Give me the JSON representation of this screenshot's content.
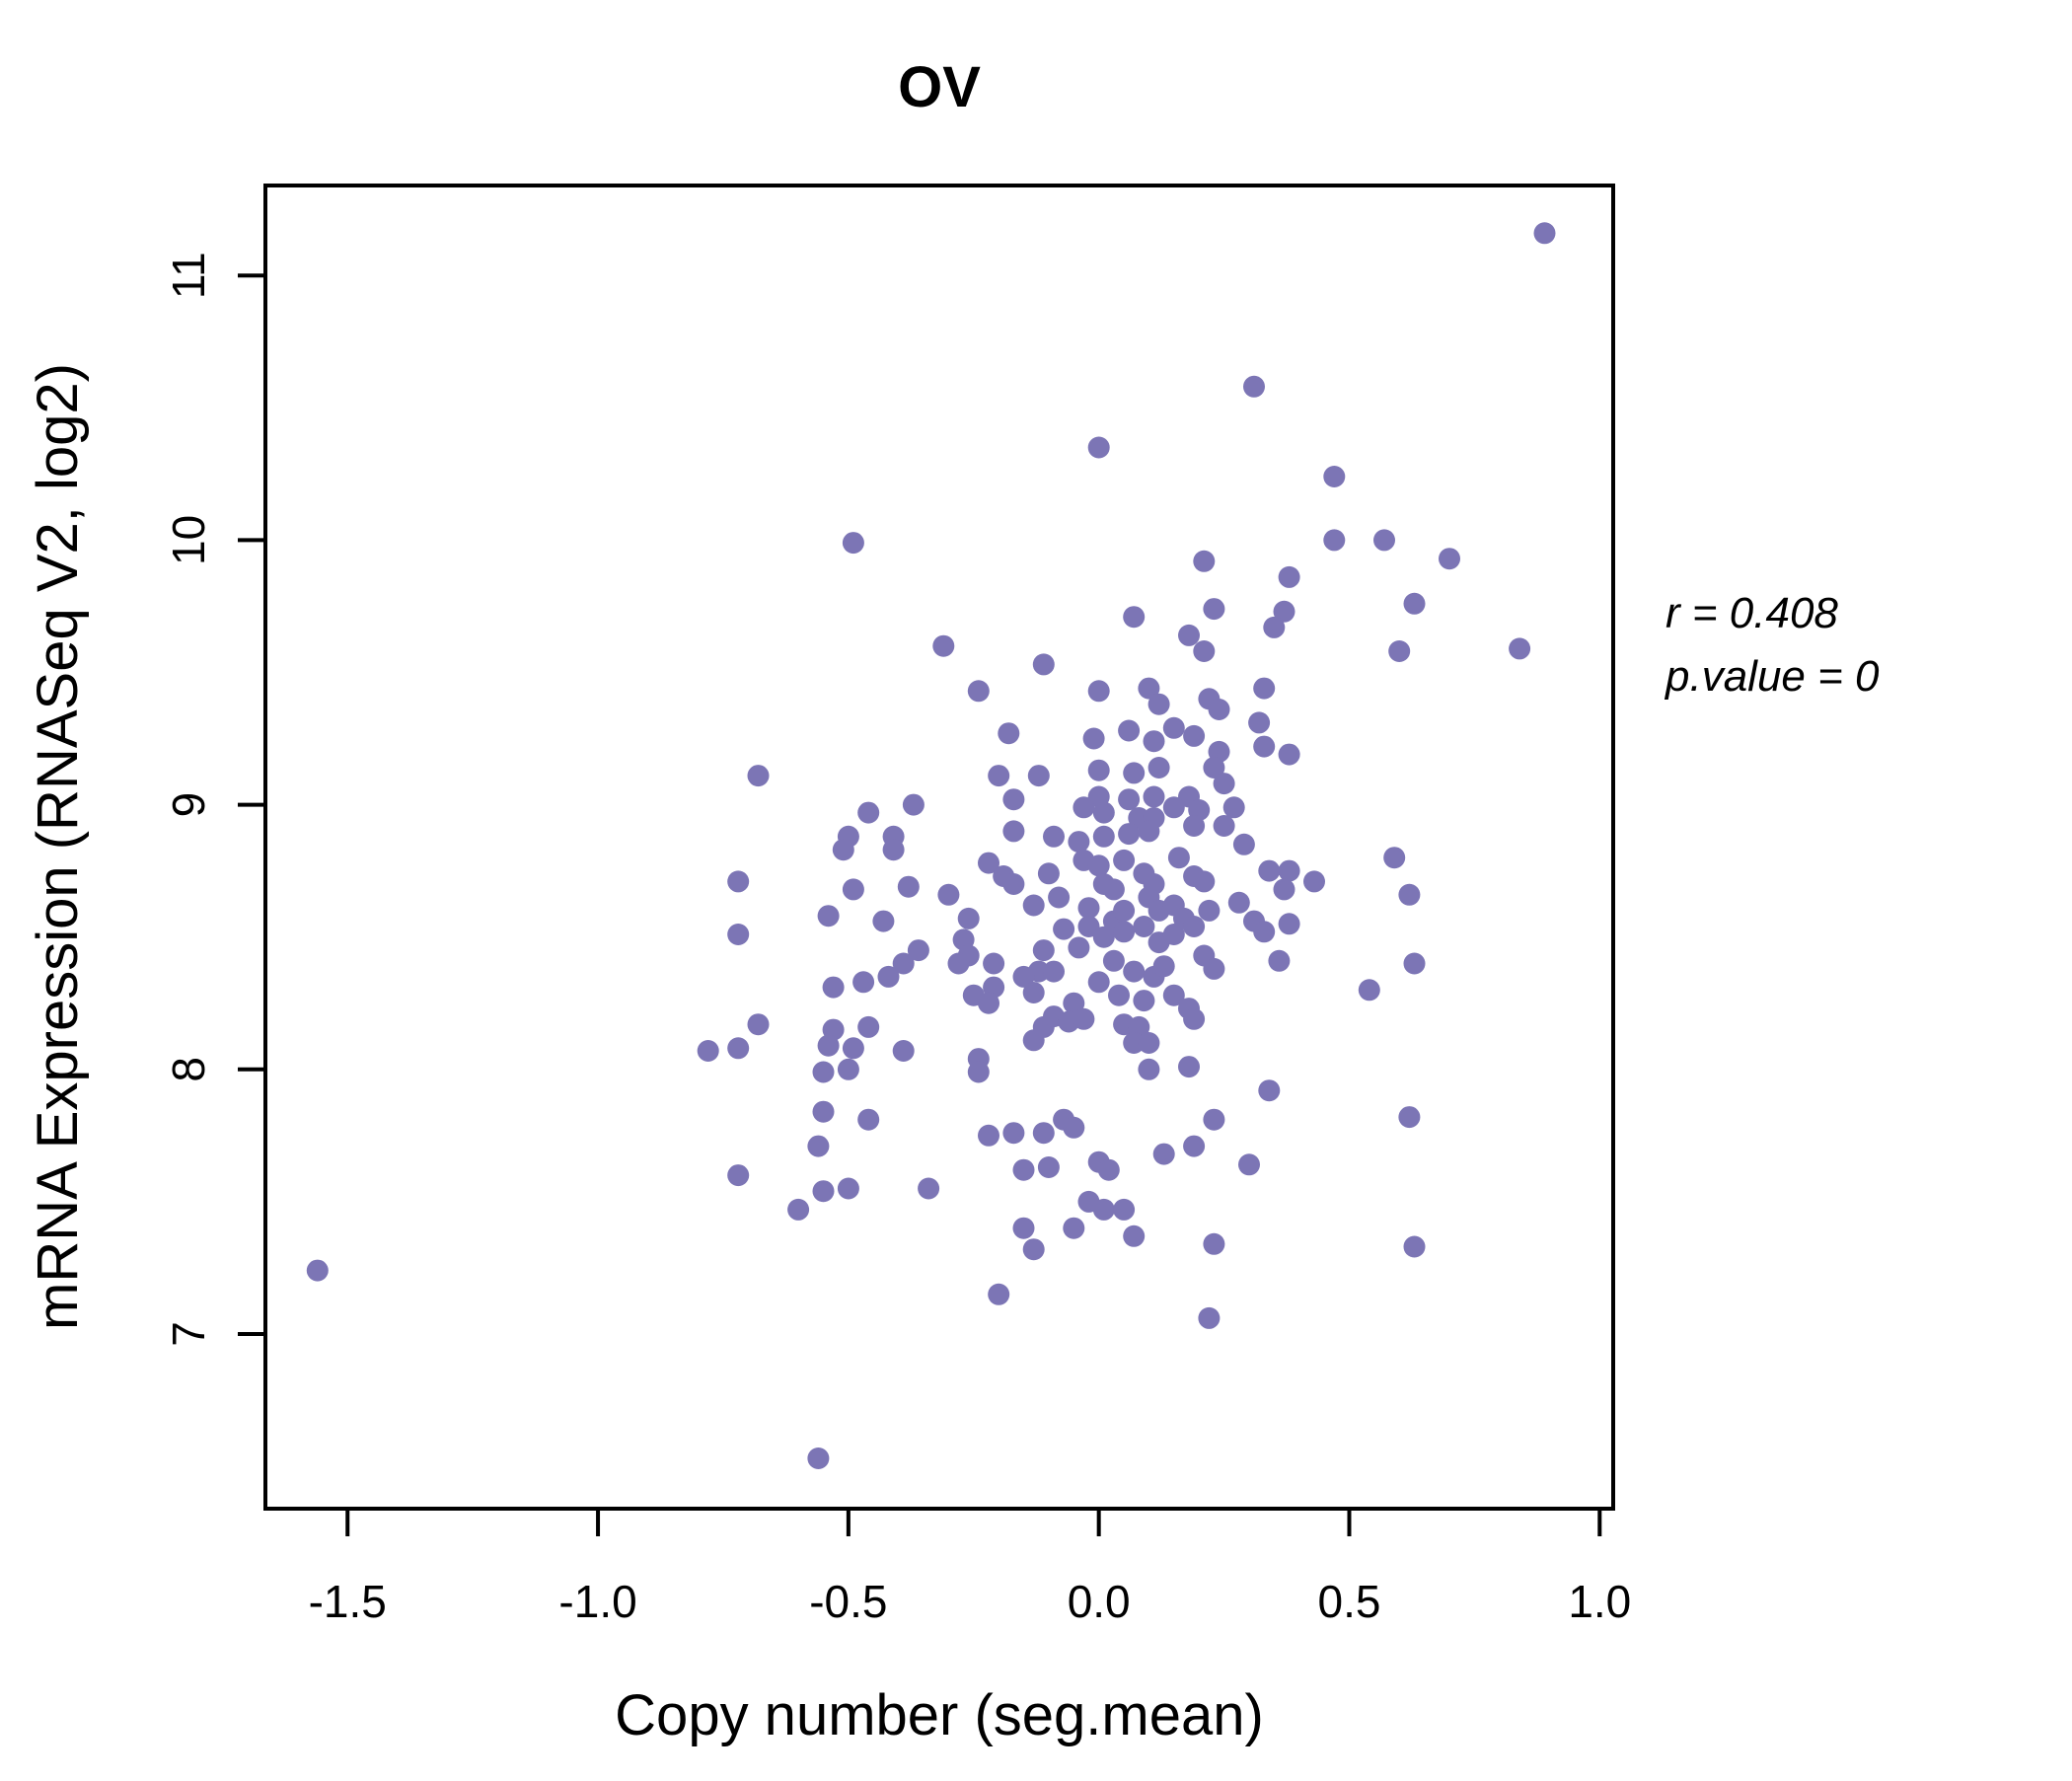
{
  "chart_data": {
    "type": "scatter",
    "title": "OV",
    "xlabel": "Copy number (seg.mean)",
    "ylabel": "mRNA Expression (RNASeq V2, log2)",
    "xlim": [
      -1.664,
      1.027
    ],
    "ylim": [
      6.34,
      11.34
    ],
    "grid": false,
    "x_ticks": {
      "values": [
        -1.5,
        -1.0,
        -0.5,
        0.0,
        0.5,
        1.0
      ],
      "labels": [
        "-1.5",
        "-1.0",
        "-0.5",
        "0.0",
        "0.5",
        "1.0"
      ]
    },
    "y_ticks": {
      "values": [
        7,
        8,
        9,
        10,
        11
      ],
      "labels": [
        "7",
        "8",
        "9",
        "10",
        "11"
      ]
    },
    "annotation": {
      "line1": "r = 0.408",
      "line2": "p.value = 0",
      "r": 0.408,
      "p_value": 0
    },
    "colors": {
      "point": "#7C75B5",
      "title": "#7A72BC",
      "axis": "#000000"
    },
    "points": [
      [
        0.0,
        10.35
      ],
      [
        -0.49,
        9.99
      ],
      [
        0.07,
        9.71
      ],
      [
        0.89,
        11.16
      ],
      [
        0.31,
        10.58
      ],
      [
        0.47,
        10.24
      ],
      [
        0.47,
        10.0
      ],
      [
        0.57,
        10.0
      ],
      [
        0.21,
        9.92
      ],
      [
        0.7,
        9.93
      ],
      [
        0.38,
        9.86
      ],
      [
        0.23,
        9.74
      ],
      [
        0.63,
        9.76
      ],
      [
        0.37,
        9.73
      ],
      [
        -0.31,
        9.6
      ],
      [
        -0.68,
        9.11
      ],
      [
        -0.46,
        8.97
      ],
      [
        -0.37,
        9.0
      ],
      [
        -0.5,
        8.88
      ],
      [
        -0.41,
        8.88
      ],
      [
        -0.11,
        9.53
      ],
      [
        -0.24,
        9.43
      ],
      [
        0.0,
        9.43
      ],
      [
        0.1,
        9.44
      ],
      [
        0.12,
        9.38
      ],
      [
        -0.18,
        9.27
      ],
      [
        -0.01,
        9.25
      ],
      [
        0.06,
        9.28
      ],
      [
        0.11,
        9.24
      ],
      [
        -0.2,
        9.11
      ],
      [
        -0.12,
        9.11
      ],
      [
        0.0,
        9.13
      ],
      [
        0.07,
        9.12
      ],
      [
        0.12,
        9.14
      ],
      [
        -0.17,
        9.02
      ],
      [
        0.0,
        9.03
      ],
      [
        0.06,
        9.02
      ],
      [
        0.11,
        9.03
      ],
      [
        -0.03,
        8.99
      ],
      [
        0.01,
        8.97
      ],
      [
        0.08,
        8.95
      ],
      [
        0.11,
        8.95
      ],
      [
        -0.17,
        8.9
      ],
      [
        -0.09,
        8.88
      ],
      [
        -0.04,
        8.86
      ],
      [
        0.01,
        8.88
      ],
      [
        0.06,
        8.89
      ],
      [
        0.1,
        8.9
      ],
      [
        -0.51,
        8.83
      ],
      [
        -0.41,
        8.83
      ],
      [
        -0.72,
        8.71
      ],
      [
        -0.49,
        8.68
      ],
      [
        -0.38,
        8.69
      ],
      [
        -0.54,
        8.58
      ],
      [
        -0.43,
        8.56
      ],
      [
        -0.72,
        8.51
      ],
      [
        -0.36,
        8.45
      ],
      [
        -0.39,
        8.4
      ],
      [
        -0.42,
        8.35
      ],
      [
        -0.47,
        8.33
      ],
      [
        -0.53,
        8.31
      ],
      [
        -0.68,
        8.17
      ],
      [
        -0.46,
        8.16
      ],
      [
        -0.78,
        8.07
      ],
      [
        -0.72,
        8.08
      ],
      [
        -0.53,
        8.15
      ],
      [
        -0.54,
        8.09
      ],
      [
        -0.49,
        8.08
      ],
      [
        -0.39,
        8.07
      ],
      [
        -0.3,
        8.66
      ],
      [
        -0.22,
        8.78
      ],
      [
        -0.19,
        8.73
      ],
      [
        -0.17,
        8.7
      ],
      [
        -0.1,
        8.74
      ],
      [
        -0.13,
        8.62
      ],
      [
        -0.08,
        8.65
      ],
      [
        -0.03,
        8.79
      ],
      [
        0.0,
        8.77
      ],
      [
        0.05,
        8.79
      ],
      [
        0.01,
        8.7
      ],
      [
        0.03,
        8.68
      ],
      [
        0.09,
        8.74
      ],
      [
        0.11,
        8.7
      ],
      [
        0.1,
        8.65
      ],
      [
        -0.02,
        8.61
      ],
      [
        0.03,
        8.56
      ],
      [
        0.05,
        8.6
      ],
      [
        0.12,
        8.6
      ],
      [
        -0.26,
        8.57
      ],
      [
        -0.27,
        8.49
      ],
      [
        -0.26,
        8.43
      ],
      [
        -0.28,
        8.4
      ],
      [
        -0.21,
        8.4
      ],
      [
        -0.11,
        8.45
      ],
      [
        -0.12,
        8.37
      ],
      [
        -0.09,
        8.37
      ],
      [
        -0.07,
        8.53
      ],
      [
        -0.04,
        8.46
      ],
      [
        -0.02,
        8.54
      ],
      [
        0.01,
        8.5
      ],
      [
        0.05,
        8.52
      ],
      [
        0.09,
        8.54
      ],
      [
        0.12,
        8.48
      ],
      [
        0.03,
        8.41
      ],
      [
        0.07,
        8.37
      ],
      [
        0.11,
        8.35
      ],
      [
        0.0,
        8.33
      ],
      [
        0.04,
        8.28
      ],
      [
        0.09,
        8.26
      ],
      [
        -0.21,
        8.31
      ],
      [
        -0.25,
        8.28
      ],
      [
        -0.22,
        8.25
      ],
      [
        -0.15,
        8.35
      ],
      [
        -0.13,
        8.29
      ],
      [
        -0.11,
        8.16
      ],
      [
        -0.09,
        8.2
      ],
      [
        -0.05,
        8.25
      ],
      [
        -0.06,
        8.18
      ],
      [
        -0.03,
        8.19
      ],
      [
        -0.13,
        8.11
      ],
      [
        0.05,
        8.17
      ],
      [
        0.08,
        8.16
      ],
      [
        0.07,
        8.1
      ],
      [
        0.1,
        8.1
      ],
      [
        -0.24,
        8.04
      ],
      [
        0.18,
        9.64
      ],
      [
        0.21,
        9.58
      ],
      [
        0.35,
        9.67
      ],
      [
        0.6,
        9.58
      ],
      [
        0.84,
        9.59
      ],
      [
        0.33,
        9.44
      ],
      [
        0.22,
        9.4
      ],
      [
        0.24,
        9.36
      ],
      [
        0.15,
        9.29
      ],
      [
        0.19,
        9.26
      ],
      [
        0.32,
        9.31
      ],
      [
        0.33,
        9.22
      ],
      [
        0.38,
        9.19
      ],
      [
        0.24,
        9.2
      ],
      [
        0.23,
        9.14
      ],
      [
        0.25,
        9.08
      ],
      [
        0.27,
        8.99
      ],
      [
        0.18,
        9.03
      ],
      [
        0.2,
        8.98
      ],
      [
        0.15,
        8.99
      ],
      [
        0.19,
        8.92
      ],
      [
        0.25,
        8.92
      ],
      [
        0.29,
        8.85
      ],
      [
        0.16,
        8.8
      ],
      [
        0.19,
        8.73
      ],
      [
        0.21,
        8.71
      ],
      [
        0.59,
        8.8
      ],
      [
        0.34,
        8.75
      ],
      [
        0.38,
        8.75
      ],
      [
        0.37,
        8.68
      ],
      [
        0.43,
        8.71
      ],
      [
        0.62,
        8.66
      ],
      [
        0.28,
        8.63
      ],
      [
        0.22,
        8.6
      ],
      [
        0.15,
        8.62
      ],
      [
        0.17,
        8.57
      ],
      [
        0.19,
        8.54
      ],
      [
        0.15,
        8.51
      ],
      [
        0.31,
        8.56
      ],
      [
        0.33,
        8.52
      ],
      [
        0.38,
        8.55
      ],
      [
        0.21,
        8.43
      ],
      [
        0.23,
        8.38
      ],
      [
        0.36,
        8.41
      ],
      [
        0.63,
        8.4
      ],
      [
        0.54,
        8.3
      ],
      [
        0.15,
        8.28
      ],
      [
        0.18,
        8.23
      ],
      [
        0.19,
        8.19
      ],
      [
        0.13,
        8.39
      ],
      [
        -1.56,
        7.24
      ],
      [
        -0.55,
        7.99
      ],
      [
        -0.5,
        8.0
      ],
      [
        -0.24,
        7.99
      ],
      [
        0.1,
        8.0
      ],
      [
        -0.55,
        7.84
      ],
      [
        -0.46,
        7.81
      ],
      [
        -0.22,
        7.75
      ],
      [
        -0.17,
        7.76
      ],
      [
        -0.11,
        7.76
      ],
      [
        -0.07,
        7.81
      ],
      [
        -0.05,
        7.78
      ],
      [
        -0.56,
        7.71
      ],
      [
        -0.15,
        7.62
      ],
      [
        -0.1,
        7.63
      ],
      [
        0.0,
        7.65
      ],
      [
        0.02,
        7.62
      ],
      [
        -0.72,
        7.6
      ],
      [
        -0.55,
        7.54
      ],
      [
        -0.5,
        7.55
      ],
      [
        -0.34,
        7.55
      ],
      [
        -0.6,
        7.47
      ],
      [
        -0.02,
        7.5
      ],
      [
        0.01,
        7.47
      ],
      [
        0.05,
        7.47
      ],
      [
        -0.15,
        7.4
      ],
      [
        -0.13,
        7.32
      ],
      [
        -0.05,
        7.4
      ],
      [
        0.07,
        7.37
      ],
      [
        -0.2,
        7.15
      ],
      [
        -0.56,
        6.53
      ],
      [
        0.18,
        8.01
      ],
      [
        0.34,
        7.92
      ],
      [
        0.62,
        7.82
      ],
      [
        0.23,
        7.81
      ],
      [
        0.19,
        7.71
      ],
      [
        0.13,
        7.68
      ],
      [
        0.3,
        7.64
      ],
      [
        0.23,
        7.34
      ],
      [
        0.63,
        7.33
      ],
      [
        0.22,
        7.06
      ]
    ]
  }
}
